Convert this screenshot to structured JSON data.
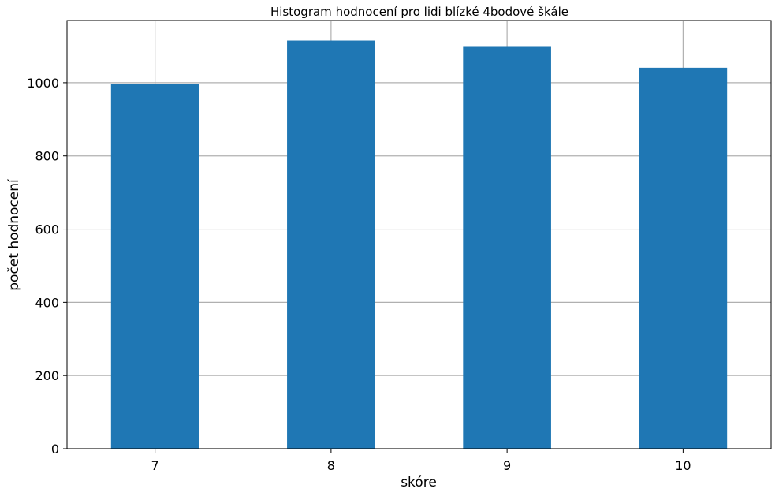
{
  "chart_data": {
    "type": "bar",
    "title": "Histogram hodnocení pro lidi blízké 4bodové škále",
    "xlabel": "skóre",
    "ylabel": "počet hodnocení",
    "categories": [
      "7",
      "8",
      "9",
      "10"
    ],
    "values": [
      996,
      1115,
      1100,
      1041
    ],
    "ylim": [
      0,
      1170
    ],
    "yticks": [
      0,
      200,
      400,
      600,
      800,
      1000
    ],
    "grid": true,
    "bar_color": "#1f77b4",
    "grid_color": "#b0b0b0"
  }
}
